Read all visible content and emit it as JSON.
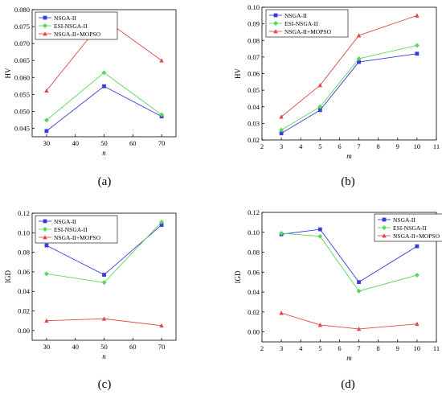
{
  "chart_data": [
    {
      "type": "line",
      "panel_label": "(a)",
      "xlabel": "n",
      "ylabel": "HV",
      "x": [
        30,
        50,
        70
      ],
      "xlim": [
        25,
        75
      ],
      "ylim": [
        0.0425,
        0.08
      ],
      "xticks": [
        30,
        40,
        50,
        60,
        70
      ],
      "yticks": [
        0.045,
        0.05,
        0.055,
        0.06,
        0.065,
        0.07,
        0.075,
        0.08
      ],
      "ytick_labels": [
        "0.045",
        "0.050",
        "0.055",
        "0.060",
        "0.065",
        "0.070",
        "0.075",
        "0.080"
      ],
      "legend_position": "top-left",
      "series": [
        {
          "name": "NSGA-II",
          "color": "#3b3bd9",
          "marker": "square",
          "values": [
            0.0442,
            0.0574,
            0.0485
          ]
        },
        {
          "name": "ESI-NSGA-II",
          "color": "#5cd65c",
          "marker": "diamond",
          "values": [
            0.0474,
            0.0614,
            0.049
          ]
        },
        {
          "name": "NSGA-II+MOPSO",
          "color": "#e04848",
          "marker": "triangle",
          "values": [
            0.0561,
            0.0772,
            0.065
          ]
        }
      ]
    },
    {
      "type": "line",
      "panel_label": "(b)",
      "xlabel": "m",
      "ylabel": "HV",
      "x": [
        3,
        5,
        7,
        10
      ],
      "xlim": [
        2,
        11
      ],
      "ylim": [
        0.02,
        0.1
      ],
      "xticks": [
        2,
        3,
        4,
        5,
        6,
        7,
        8,
        9,
        10,
        11
      ],
      "yticks": [
        0.02,
        0.03,
        0.04,
        0.05,
        0.06,
        0.07,
        0.08,
        0.09,
        0.1
      ],
      "ytick_labels": [
        "0.02",
        "0.03",
        "0.04",
        "0.05",
        "0.06",
        "0.07",
        "0.08",
        "0.09",
        "0.10"
      ],
      "legend_position": "top-left",
      "series": [
        {
          "name": "NSGA-II",
          "color": "#3b3bd9",
          "marker": "square",
          "values": [
            0.024,
            0.038,
            0.067,
            0.072
          ]
        },
        {
          "name": "ESI-NSGA-II",
          "color": "#5cd65c",
          "marker": "diamond",
          "values": [
            0.026,
            0.04,
            0.069,
            0.077
          ]
        },
        {
          "name": "NSGA-II+MOPSO",
          "color": "#e04848",
          "marker": "triangle",
          "values": [
            0.034,
            0.053,
            0.083,
            0.095
          ]
        }
      ]
    },
    {
      "type": "line",
      "panel_label": "(c)",
      "xlabel": "n",
      "ylabel": "IGD",
      "x": [
        30,
        50,
        70
      ],
      "xlim": [
        25,
        75
      ],
      "ylim": [
        -0.01,
        0.12
      ],
      "xticks": [
        30,
        40,
        50,
        60,
        70
      ],
      "yticks": [
        0.0,
        0.02,
        0.04,
        0.06,
        0.08,
        0.1,
        0.12
      ],
      "ytick_labels": [
        "0.00",
        "0.02",
        "0.04",
        "0.06",
        "0.08",
        "0.10",
        "0.12"
      ],
      "legend_position": "top-left",
      "series": [
        {
          "name": "NSGA-II",
          "color": "#3b3bd9",
          "marker": "square",
          "values": [
            0.087,
            0.057,
            0.108
          ]
        },
        {
          "name": "ESI-NSGA-II",
          "color": "#5cd65c",
          "marker": "diamond",
          "values": [
            0.058,
            0.049,
            0.111
          ]
        },
        {
          "name": "NSGA-II+MOPSO",
          "color": "#e04848",
          "marker": "triangle",
          "values": [
            0.01,
            0.012,
            0.005
          ]
        }
      ]
    },
    {
      "type": "line",
      "panel_label": "(d)",
      "xlabel": "m",
      "ylabel": "IGD",
      "x": [
        3,
        5,
        7,
        10
      ],
      "xlim": [
        2,
        11
      ],
      "ylim": [
        -0.01,
        0.12
      ],
      "xticks": [
        2,
        3,
        4,
        5,
        6,
        7,
        8,
        9,
        10,
        11
      ],
      "yticks": [
        0.0,
        0.02,
        0.04,
        0.06,
        0.08,
        0.1,
        0.12
      ],
      "ytick_labels": [
        "0.00",
        "0.02",
        "0.04",
        "0.06",
        "0.08",
        "0.10",
        "0.12"
      ],
      "legend_position": "top-right",
      "series": [
        {
          "name": "NSGA-II",
          "color": "#3b3bd9",
          "marker": "square",
          "values": [
            0.098,
            0.103,
            0.05,
            0.086
          ]
        },
        {
          "name": "ESI-NSGA-II",
          "color": "#5cd65c",
          "marker": "diamond",
          "values": [
            0.099,
            0.096,
            0.041,
            0.057
          ]
        },
        {
          "name": "NSGA-II+MOPSO",
          "color": "#e04848",
          "marker": "triangle",
          "values": [
            0.019,
            0.007,
            0.003,
            0.008
          ]
        }
      ]
    }
  ]
}
